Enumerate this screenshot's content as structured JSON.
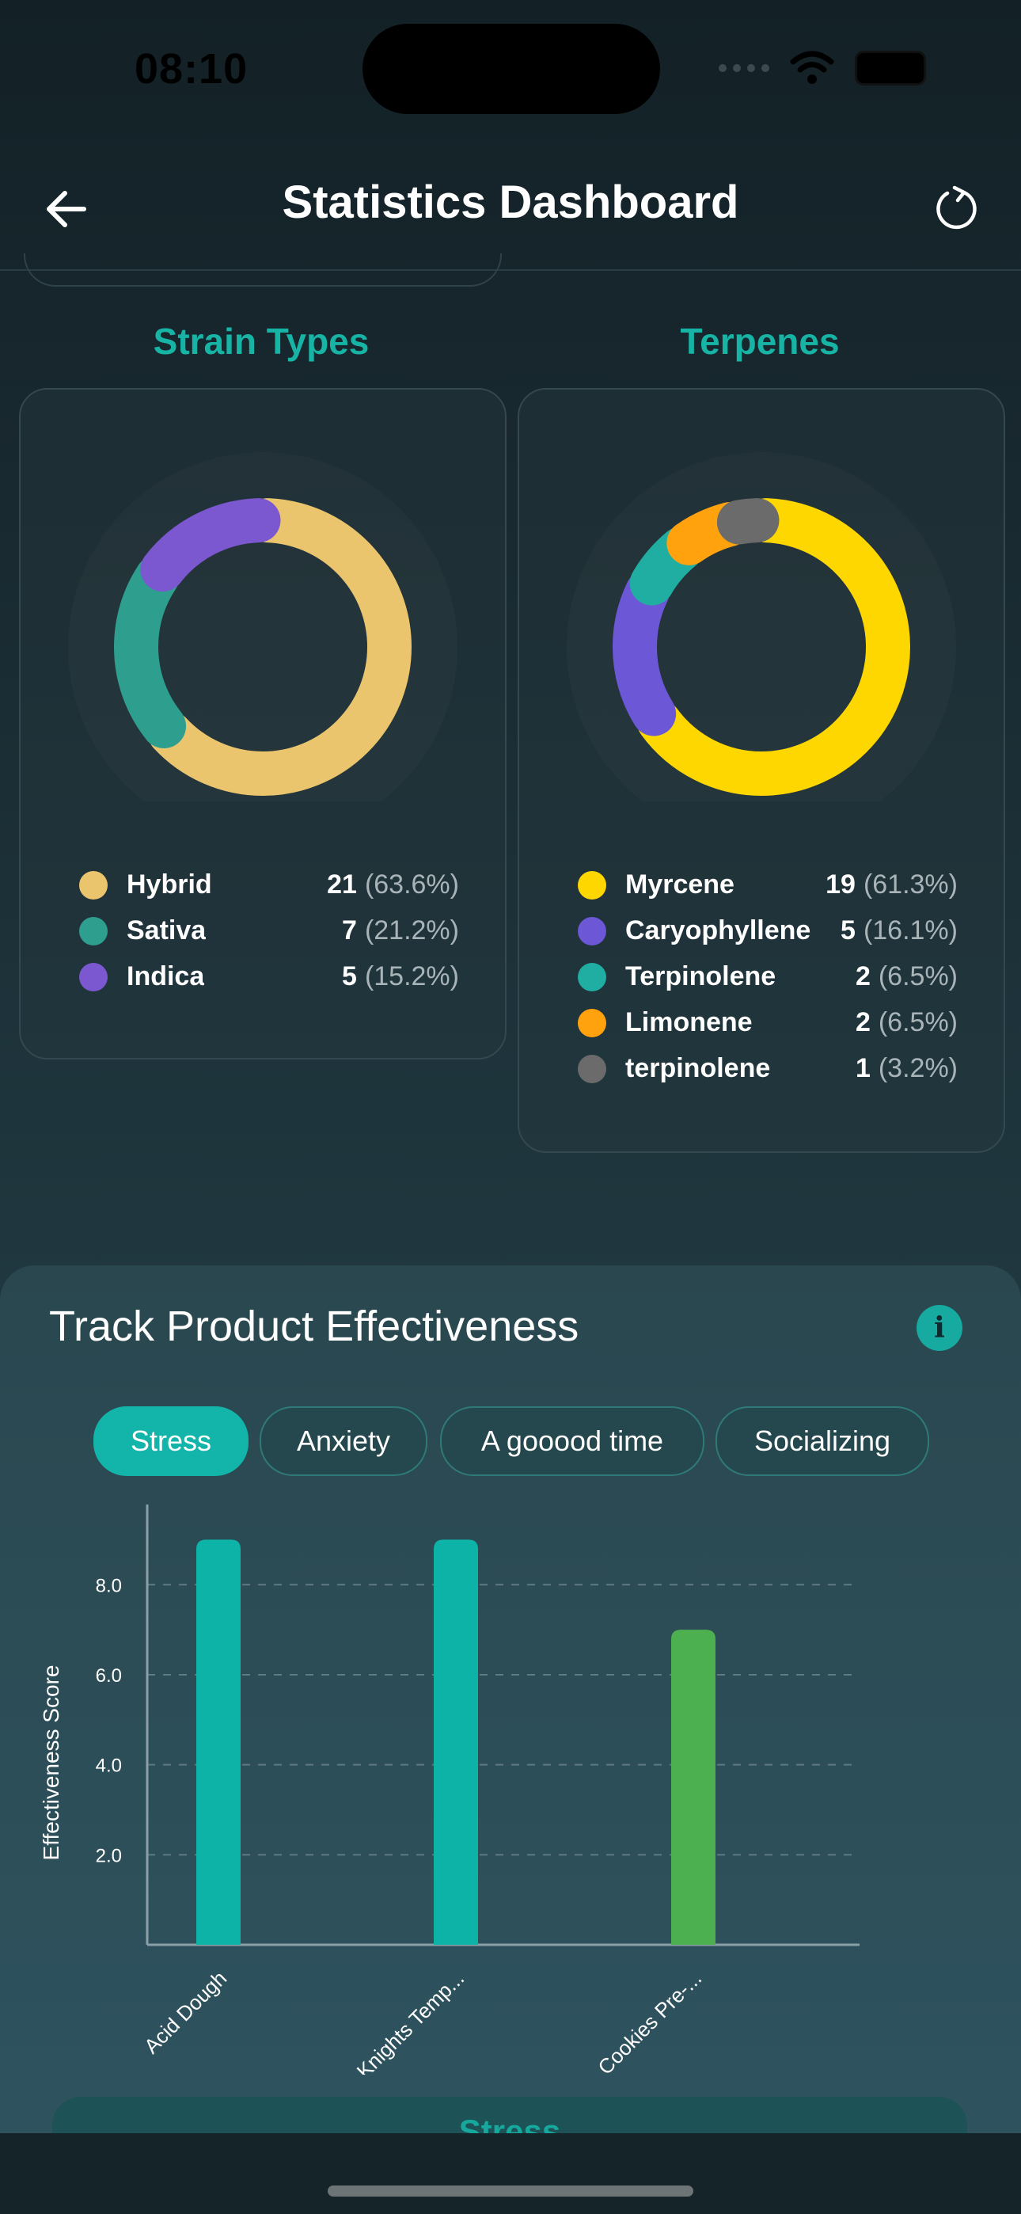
{
  "status_bar": {
    "time": "08:10"
  },
  "header": {
    "title": "Statistics Dashboard",
    "back_icon": "arrow-left-icon",
    "refresh_icon": "refresh-icon"
  },
  "strain_types": {
    "title": "Strain Types",
    "items": [
      {
        "name": "Hybrid",
        "count": "21",
        "pct": "(63.6%)",
        "value": 21,
        "color": "#EBC56E"
      },
      {
        "name": "Sativa",
        "count": "7",
        "pct": "(21.2%)",
        "value": 7,
        "color": "#2E9E8E"
      },
      {
        "name": "Indica",
        "count": "5",
        "pct": "(15.2%)",
        "value": 5,
        "color": "#7B57D0"
      }
    ]
  },
  "terpenes": {
    "title": "Terpenes",
    "items": [
      {
        "name": "Myrcene",
        "count": "19",
        "pct": "(61.3%)",
        "value": 19,
        "color": "#FFD700"
      },
      {
        "name": "Caryophyllene",
        "count": "5",
        "pct": "(16.1%)",
        "value": 5,
        "color": "#6C58D6"
      },
      {
        "name": "Terpinolene",
        "count": "2",
        "pct": "(6.5%)",
        "value": 2,
        "color": "#20ADA2"
      },
      {
        "name": "Limonene",
        "count": "2",
        "pct": "(6.5%)",
        "value": 2,
        "color": "#FFA20D"
      },
      {
        "name": "terpinolene",
        "count": "1",
        "pct": "(3.2%)",
        "value": 1,
        "color": "#6B6B6B"
      }
    ]
  },
  "effectiveness": {
    "title": "Track Product Effectiveness",
    "info_icon": "info-icon",
    "chips": [
      {
        "label": "Stress",
        "active": true
      },
      {
        "label": "Anxiety",
        "active": false
      },
      {
        "label": "A gooood time",
        "active": false
      },
      {
        "label": "Socializing",
        "active": false
      }
    ],
    "bottom_button": "Stress"
  },
  "chart_data": {
    "type": "bar",
    "categories": [
      "Acid Dough",
      "Knights Temp...",
      "Cookies Pre-..."
    ],
    "values": [
      9,
      9,
      7
    ],
    "colors": [
      "#0DB3A6",
      "#0DB3A6",
      "#4CB050"
    ],
    "ylabel": "Effectiveness Score",
    "ylim": [
      0,
      9.5
    ],
    "yticks": [
      "2.0",
      "4.0",
      "6.0",
      "8.0"
    ],
    "grid": true
  }
}
